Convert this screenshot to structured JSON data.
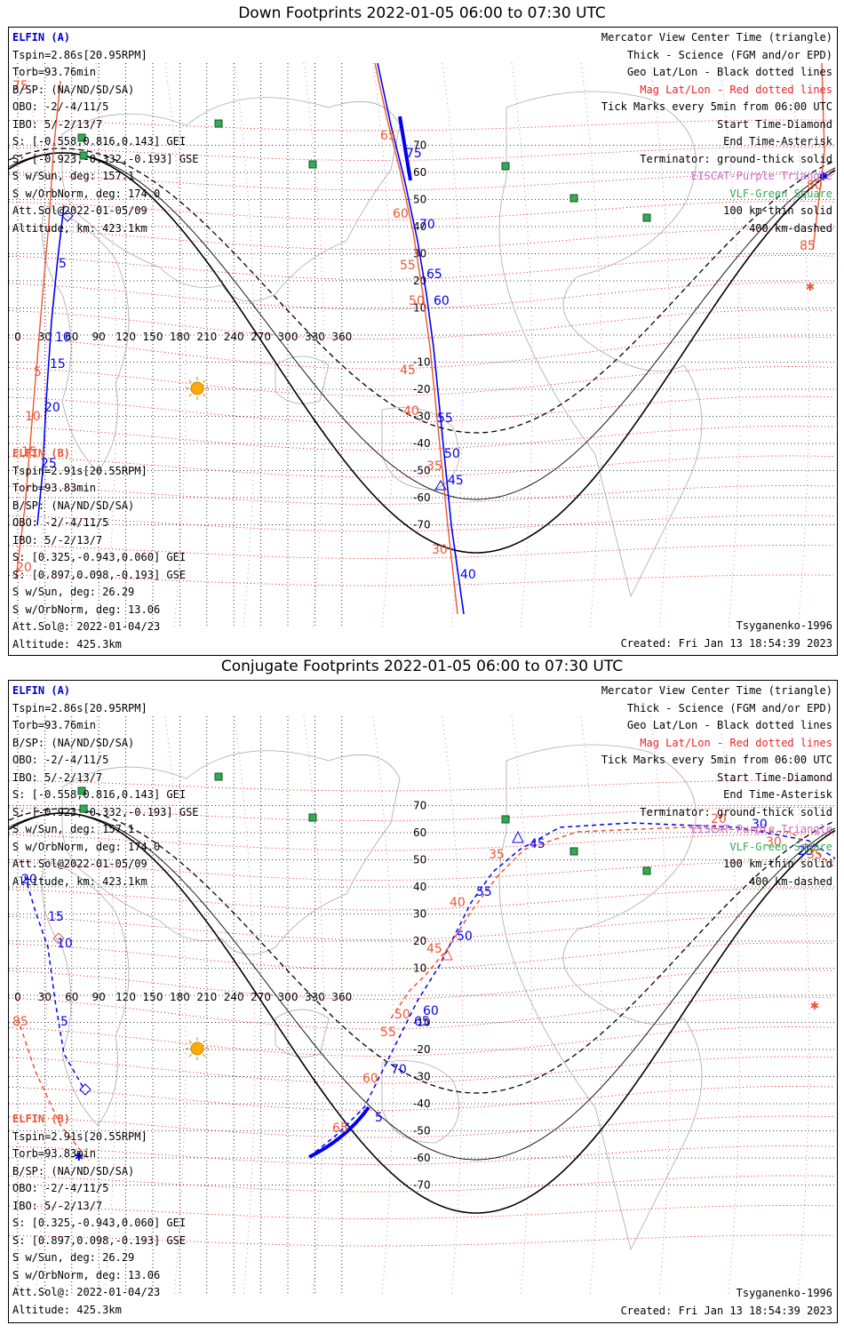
{
  "panels": [
    {
      "title": "Down Footprints 2022-01-05 06:00 to 07:30 UTC",
      "elfin_a": {
        "header": "ELFIN (A)",
        "lines": [
          "Tspin=2.86s[20.95RPM]",
          "Torb=93.76min",
          "B/SP: (NA/ND/SD/SA)",
          "OBO: -2/-4/11/5",
          "IBO: 5/-2/13/7",
          "S: [-0.558,0.816,0.143] GEI",
          "S: [-0.923,-0.332,-0.193] GSE",
          "S w/Sun, deg: 157.1",
          "S w/OrbNorm, deg: 174.0",
          "Att.Sol@2022-01-05/09",
          "Altitude, km: 423.1km"
        ]
      },
      "elfin_b": {
        "header": "ELFIN (B)",
        "lines": [
          "Tspin=2.91s[20.55RPM]",
          "Torb=93.83min",
          "B/SP: (NA/ND/SD/SA)",
          "OBO: -2/-4/11/5",
          "IBO: 5/-2/13/7",
          "S: [0.325,-0.943,0.060] GEI",
          "S: [0.897,0.098,-0.193] GSE",
          "S w/Sun, deg: 26.29",
          "S w/OrbNorm, deg: 13.06",
          "Att.Sol@: 2022-01-04/23",
          "Altitude: 425.3km"
        ]
      },
      "footer_right": [
        "Tsyganenko-1996",
        "Created: Fri Jan 13 18:54:39 2023"
      ]
    },
    {
      "title": "Conjugate Footprints 2022-01-05 06:00 to 07:30 UTC",
      "elfin_a": {
        "header": "ELFIN (A)",
        "lines": [
          "Tspin=2.86s[20.95RPM]",
          "Torb=93.76min",
          "B/SP: (NA/ND/SD/SA)",
          "OBO: -2/-4/11/5",
          "IBO: 5/-2/13/7",
          "S: [-0.558,0.816,0.143] GEI",
          "S: [-0.923,-0.332,-0.193] GSE",
          "S w/Sun, deg: 157.1",
          "S w/OrbNorm, deg: 174.0",
          "Att.Sol@2022-01-05/09",
          "Altitude, km: 423.1km"
        ]
      },
      "elfin_b": {
        "header": "ELFIN (B)",
        "lines": [
          "Tspin=2.91s[20.55RPM]",
          "Torb=93.83min",
          "B/SP: (NA/ND/SD/SA)",
          "OBO: -2/-4/11/5",
          "IBO: 5/-2/13/7",
          "S: [0.325,-0.943,0.060] GEI",
          "S: [0.897,0.098,-0.193] GSE",
          "S w/Sun, deg: 26.29",
          "S w/OrbNorm, deg: 13.06",
          "Att.Sol@: 2022-01-04/23",
          "Altitude: 425.3km"
        ]
      },
      "footer_right": [
        "Tsyganenko-1996",
        "Created: Fri Jan 13 18:54:39 2023"
      ]
    }
  ],
  "legend": [
    {
      "text": "Mercator View Center Time (triangle)",
      "style": "black"
    },
    {
      "text": "Thick - Science (FGM and/or EPD)",
      "style": "black"
    },
    {
      "text": "Geo Lat/Lon - Black dotted lines",
      "style": "black"
    },
    {
      "text": "Mag Lat/Lon - Red dotted lines",
      "style": "red"
    },
    {
      "text": "Tick Marks every 5min from 06:00 UTC",
      "style": "black"
    },
    {
      "text": "Start Time-Diamond",
      "style": "black"
    },
    {
      "text": "End Time-Asterisk",
      "style": "black"
    },
    {
      "text": "Terminator: ground-thick solid",
      "style": "black"
    },
    {
      "text": "EISCAT-Purple Triangle",
      "style": "purple"
    },
    {
      "text": "VLF-Green Square",
      "style": "green"
    },
    {
      "text": "100 km-thin solid",
      "style": "black"
    },
    {
      "text": "400 km-dashed",
      "style": "black"
    }
  ],
  "lon_ticks": [
    "0",
    "30",
    "60",
    "90",
    "120",
    "150",
    "180",
    "210",
    "240",
    "270",
    "300",
    "330",
    "360"
  ],
  "lat_ticks": [
    "70",
    "60",
    "50",
    "40",
    "30",
    "20",
    "10",
    "-10",
    "-20",
    "-30",
    "-40",
    "-50",
    "-60",
    "-70"
  ],
  "colors": {
    "elfin_a": "#0000ee",
    "elfin_b": "#ee5533",
    "mag_grid": "#ee0000",
    "geo_grid": "#000000",
    "sun": "#ffaa00",
    "vlf": "#33aa55",
    "eiscat": "#cc66cc"
  },
  "top_labels": {
    "a": [
      "5",
      "10",
      "15",
      "20",
      "25",
      "75",
      "70",
      "65",
      "60",
      "55",
      "50",
      "45",
      "40"
    ],
    "b": [
      "75",
      "5",
      "10",
      "15",
      "20",
      "65",
      "60",
      "55",
      "50",
      "45",
      "40",
      "35",
      "30",
      "80",
      "85"
    ]
  },
  "bottom_labels": {
    "a": [
      "20",
      "15",
      "10",
      "5",
      "5",
      "70",
      "65",
      "60",
      "55",
      "50",
      "45",
      "30",
      "25"
    ],
    "b": [
      "85",
      "65",
      "60",
      "55",
      "50",
      "45",
      "40",
      "35",
      "20",
      "30",
      "35"
    ]
  }
}
